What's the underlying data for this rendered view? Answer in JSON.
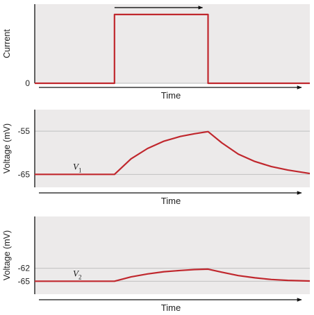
{
  "chart_data": [
    {
      "type": "line",
      "ylabel": "Current",
      "xlabel": "Time",
      "yticks": [
        {
          "value": 0,
          "label": "0"
        }
      ],
      "ylim": [
        0,
        1.15
      ],
      "xlim": [
        0,
        100
      ],
      "grid": true,
      "colors": {
        "series": "#c0272d",
        "background": "#eceaea",
        "grid": "#b9b9b9",
        "axis": "#111111"
      },
      "series": [
        {
          "x": [
            0,
            29,
            29,
            63,
            63,
            100
          ],
          "y": [
            0,
            0,
            1,
            1,
            0,
            0
          ]
        }
      ],
      "annotations": [
        {
          "type": "arrow",
          "x_from": 29,
          "x_to": 61,
          "y": 1.1
        }
      ]
    },
    {
      "type": "line",
      "ylabel": "Voltage (mV)",
      "xlabel": "Time",
      "yticks": [
        {
          "value": -55,
          "label": "-55"
        },
        {
          "value": -65,
          "label": "-65"
        }
      ],
      "ylim": [
        -68,
        -50
      ],
      "xlim": [
        0,
        100
      ],
      "grid": true,
      "colors": {
        "series": "#c0272d",
        "background": "#eceaea",
        "grid": "#b9b9b9",
        "axis": "#111111"
      },
      "series": [
        {
          "name": "V1",
          "label_main": "V",
          "label_sub": "1",
          "x": [
            0,
            29,
            35,
            41,
            47,
            53,
            58,
            63,
            68,
            74,
            80,
            86,
            92,
            100
          ],
          "y": [
            -65,
            -65,
            -61.4,
            -59.0,
            -57.3,
            -56.2,
            -55.6,
            -55.1,
            -57.7,
            -60.3,
            -62.0,
            -63.2,
            -64.0,
            -64.8
          ]
        }
      ]
    },
    {
      "type": "line",
      "ylabel": "Voltage (mV)",
      "xlabel": "Time",
      "yticks": [
        {
          "value": -62,
          "label": "-62"
        },
        {
          "value": -65,
          "label": "-65"
        }
      ],
      "ylim": [
        -68,
        -50
      ],
      "xlim": [
        0,
        100
      ],
      "grid": true,
      "colors": {
        "series": "#c0272d",
        "background": "#eceaea",
        "grid": "#b9b9b9",
        "axis": "#111111"
      },
      "series": [
        {
          "name": "V2",
          "label_main": "V",
          "label_sub": "2",
          "x": [
            0,
            29,
            35,
            41,
            47,
            53,
            58,
            63,
            68,
            74,
            80,
            86,
            92,
            100
          ],
          "y": [
            -65,
            -65,
            -64.0,
            -63.3,
            -62.8,
            -62.5,
            -62.3,
            -62.2,
            -62.9,
            -63.7,
            -64.2,
            -64.6,
            -64.8,
            -64.95
          ]
        }
      ]
    }
  ]
}
